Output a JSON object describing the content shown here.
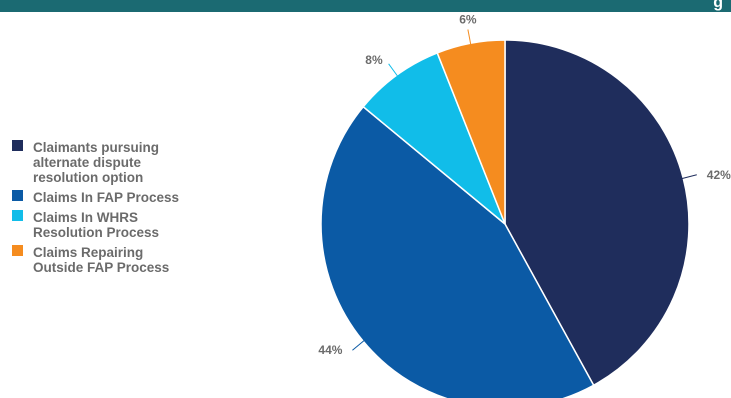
{
  "header": {
    "title_fragment": "g"
  },
  "chart_data": {
    "type": "pie",
    "title": "",
    "categories": [
      "Claimants pursuing alternate dispute resolution option",
      "Claims In FAP Process",
      "Claims In WHRS Resolution Process",
      "Claims Repairing Outside FAP Process"
    ],
    "values": [
      42,
      44,
      8,
      6
    ],
    "labels": [
      "42%",
      "44%",
      "8%",
      "6%"
    ],
    "colors": [
      "#1f2d5c",
      "#0b5aa5",
      "#11bde9",
      "#f58c1f"
    ],
    "legend_placement": "left",
    "start_angle_deg": 0,
    "direction": "clockwise"
  },
  "legend": {
    "items": [
      {
        "label": "Claimants pursuing\nalternate dispute\nresolution option",
        "color": "#1f2d5c"
      },
      {
        "label": "Claims In FAP Process",
        "color": "#0b5aa5"
      },
      {
        "label": "Claims In WHRS\nResolution Process",
        "color": "#11bde9"
      },
      {
        "label": "Claims Repairing\nOutside FAP Process",
        "color": "#f58c1f"
      }
    ]
  },
  "colors": {
    "header_bar": "#1b6a72",
    "label_text": "#6b6b6b",
    "slice_border": "#ffffff"
  }
}
